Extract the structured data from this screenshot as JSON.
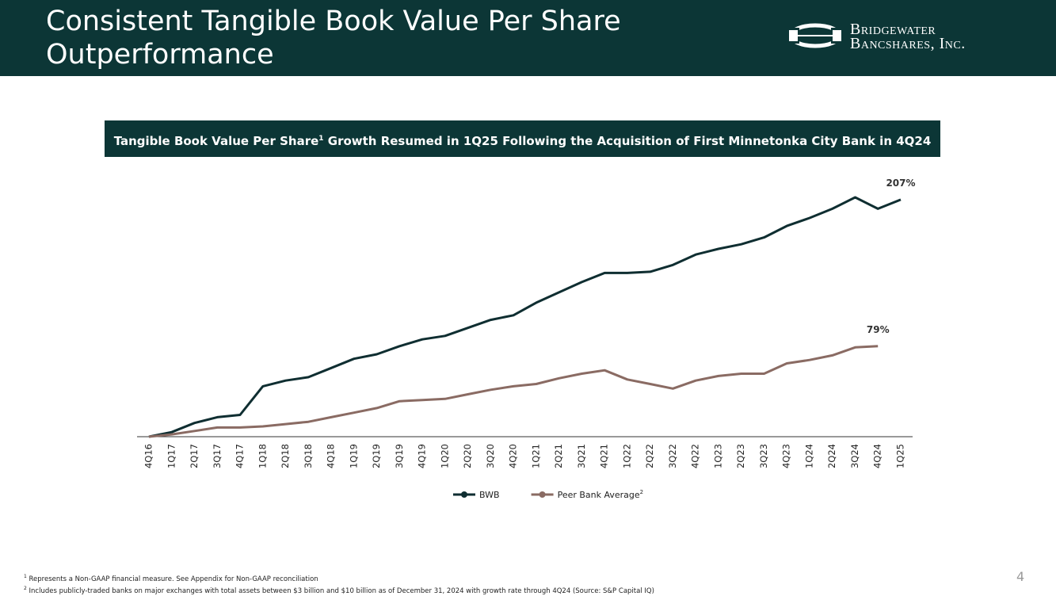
{
  "header": {
    "title": "Consistent Tangible Book Value Per Share Outperformance",
    "logo": {
      "line1": "Bridgewater",
      "line2": "Bancshares, Inc."
    }
  },
  "chart_data": {
    "type": "line",
    "subtitle": {
      "before": "Tangible Book Value Per Share",
      "sup": "1",
      "after": " Growth Resumed in 1Q25 Following the Acquisition of First Minnetonka City Bank in 4Q24"
    },
    "categories": [
      "4Q16",
      "1Q17",
      "2Q17",
      "3Q17",
      "4Q17",
      "1Q18",
      "2Q18",
      "3Q18",
      "4Q18",
      "1Q19",
      "2Q19",
      "3Q19",
      "4Q19",
      "1Q20",
      "2Q20",
      "3Q20",
      "4Q20",
      "1Q21",
      "2Q21",
      "3Q21",
      "4Q21",
      "1Q22",
      "2Q22",
      "3Q22",
      "4Q22",
      "1Q23",
      "2Q23",
      "3Q23",
      "4Q23",
      "1Q24",
      "2Q24",
      "3Q24",
      "4Q24",
      "1Q25"
    ],
    "series": [
      {
        "name": "BWB",
        "color": "#0f2e31",
        "values": [
          0,
          4,
          12,
          17,
          19,
          44,
          49,
          52,
          60,
          68,
          72,
          79,
          85,
          88,
          95,
          102,
          106,
          117,
          126,
          135,
          143,
          143,
          144,
          150,
          159,
          164,
          168,
          174,
          184,
          191,
          199,
          209,
          199,
          207
        ],
        "value_labels": [
          null,
          null,
          null,
          null,
          null,
          null,
          null,
          null,
          null,
          null,
          null,
          null,
          null,
          null,
          null,
          null,
          null,
          null,
          null,
          null,
          null,
          null,
          null,
          null,
          null,
          null,
          null,
          null,
          null,
          null,
          null,
          null,
          null,
          "207%"
        ]
      },
      {
        "name": "Peer Bank Average",
        "name_sup": "2",
        "color": "#8a6b63",
        "values": [
          0,
          2,
          5,
          8,
          8,
          9,
          11,
          13,
          17,
          21,
          25,
          31,
          32,
          33,
          37,
          41,
          44,
          46,
          51,
          55,
          58,
          50,
          46,
          42,
          49,
          53,
          55,
          55,
          64,
          67,
          71,
          78,
          79,
          null
        ],
        "value_labels": [
          null,
          null,
          null,
          null,
          null,
          null,
          null,
          null,
          null,
          null,
          null,
          null,
          null,
          null,
          null,
          null,
          null,
          null,
          null,
          null,
          null,
          null,
          null,
          null,
          null,
          null,
          null,
          null,
          null,
          null,
          null,
          null,
          "79%",
          null
        ]
      }
    ],
    "legend": "bottom"
  },
  "footnotes": [
    {
      "marker": "1",
      "text": "Represents a Non-GAAP financial measure. See Appendix for Non-GAAP reconciliation"
    },
    {
      "marker": "2",
      "text": "Includes publicly-traded banks on major exchanges with total assets between $3 billion and $10 billion as of December 31, 2024 with growth rate through 4Q24 (Source: S&P Capital IQ)"
    }
  ],
  "page_number": "4"
}
